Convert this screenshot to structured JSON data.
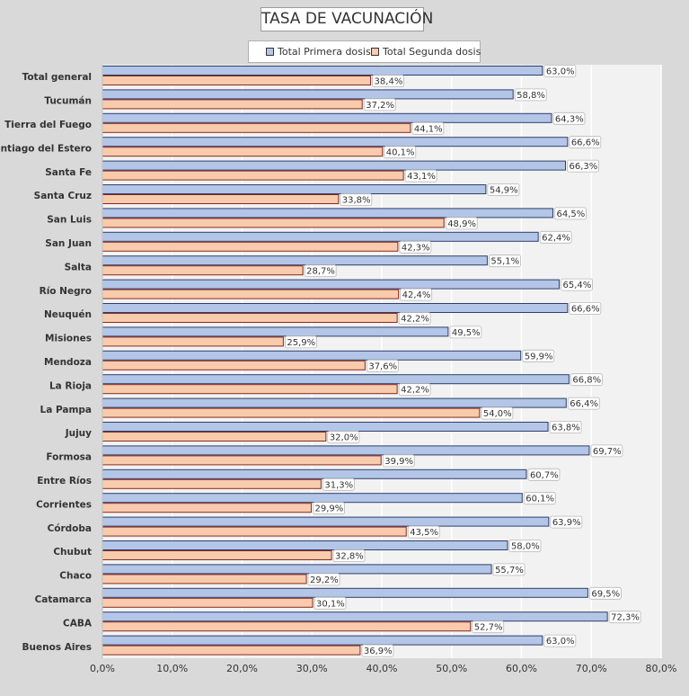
{
  "chart_data": {
    "type": "bar",
    "orientation": "horizontal",
    "title": "TASA DE VACUNACIÓN",
    "categories": [
      "Total general",
      "Tucumán",
      "Tierra del Fuego",
      "Santiago del Estero",
      "Santa Fe",
      "Santa Cruz",
      "San Luis",
      "San Juan",
      "Salta",
      "Río Negro",
      "Neuquén",
      "Misiones",
      "Mendoza",
      "La Rioja",
      "La Pampa",
      "Jujuy",
      "Formosa",
      "Entre Ríos",
      "Corrientes",
      "Córdoba",
      "Chubut",
      "Chaco",
      "Catamarca",
      "CABA",
      "Buenos Aires"
    ],
    "series": [
      {
        "name": "Total Primera dosis",
        "color": "#b4c6e7",
        "values": [
          63.0,
          58.8,
          64.3,
          66.6,
          66.3,
          54.9,
          64.5,
          62.4,
          55.1,
          65.4,
          66.6,
          49.5,
          59.9,
          66.8,
          66.4,
          63.8,
          69.7,
          60.7,
          60.1,
          63.9,
          58.0,
          55.7,
          69.5,
          72.3,
          63.0
        ],
        "labels": [
          "63,0%",
          "58,8%",
          "64,3%",
          "66,6%",
          "66,3%",
          "54,9%",
          "64,5%",
          "62,4%",
          "55,1%",
          "65,4%",
          "66,6%",
          "49,5%",
          "59,9%",
          "66,8%",
          "66,4%",
          "63,8%",
          "69,7%",
          "60,7%",
          "60,1%",
          "63,9%",
          "58,0%",
          "55,7%",
          "69,5%",
          "72,3%",
          "63,0%"
        ]
      },
      {
        "name": "Total Segunda dosis",
        "color": "#f8cbad",
        "values": [
          38.4,
          37.2,
          44.1,
          40.1,
          43.1,
          33.8,
          48.9,
          42.3,
          28.7,
          42.4,
          42.2,
          25.9,
          37.6,
          42.2,
          54.0,
          32.0,
          39.9,
          31.3,
          29.9,
          43.5,
          32.8,
          29.2,
          30.1,
          52.7,
          36.9
        ],
        "labels": [
          "38,4%",
          "37,2%",
          "44,1%",
          "40,1%",
          "43,1%",
          "33,8%",
          "48,9%",
          "42,3%",
          "28,7%",
          "42,4%",
          "42,2%",
          "25,9%",
          "37,6%",
          "42,2%",
          "54,0%",
          "32,0%",
          "39,9%",
          "31,3%",
          "29,9%",
          "43,5%",
          "32,8%",
          "29,2%",
          "30,1%",
          "52,7%",
          "36,9%"
        ]
      }
    ],
    "xlim": [
      0,
      80
    ],
    "xticks": [
      "0,0%",
      "10,0%",
      "20,0%",
      "30,0%",
      "40,0%",
      "50,0%",
      "60,0%",
      "70,0%",
      "80,0%"
    ],
    "grid": true,
    "legend_position": "top"
  }
}
